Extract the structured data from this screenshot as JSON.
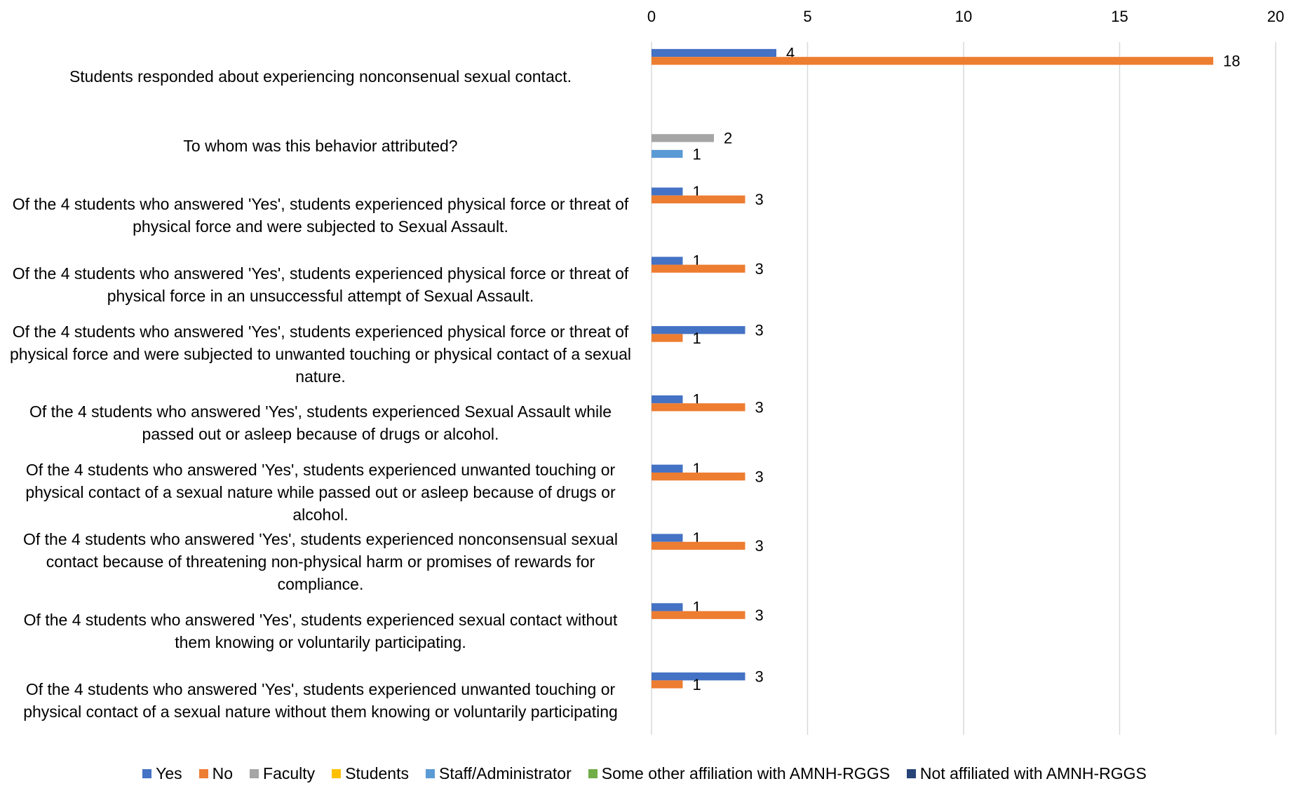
{
  "chart_data": {
    "type": "hbar",
    "categories": [
      "Students responded about experiencing nonconsenual sexual contact.",
      "To whom was this behavior attributed?",
      "Of the 4 students who answered 'Yes', students experienced physical force or threat of physical force and were subjected to Sexual Assault.",
      "Of the 4 students who answered 'Yes', students experienced physical force or threat of physical force in an unsuccessful attempt of Sexual Assault.",
      "Of the 4 students who answered 'Yes', students experienced physical force or threat of physical force and were subjected to unwanted touching or physical contact of a sexual nature.",
      "Of the 4 students who answered 'Yes', students experienced Sexual Assault while passed out or asleep because of drugs or alcohol.",
      "Of the 4 students who answered 'Yes', students experienced unwanted touching or physical contact of a sexual nature while passed out or asleep because of drugs or alcohol.",
      "Of the 4 students who answered 'Yes', students experienced nonconsensual sexual contact because of threatening non-physical harm or promises of rewards for compliance.",
      "Of the 4 students who answered 'Yes', students experienced sexual contact without them knowing or voluntarily participating.",
      "Of the 4 students who answered 'Yes', students experienced unwanted touching or physical contact of a sexual nature without them knowing or voluntarily participating"
    ],
    "series": [
      {
        "name": "Yes",
        "color": "#4472c4",
        "values": [
          4,
          null,
          1,
          1,
          3,
          1,
          1,
          1,
          1,
          3
        ]
      },
      {
        "name": "No",
        "color": "#ed7d31",
        "values": [
          18,
          null,
          3,
          3,
          1,
          3,
          3,
          3,
          3,
          1
        ]
      },
      {
        "name": "Faculty",
        "color": "#a5a5a5",
        "values": [
          null,
          2,
          null,
          null,
          null,
          null,
          null,
          null,
          null,
          null
        ]
      },
      {
        "name": "Students",
        "color": "#ffc000",
        "values": [
          null,
          null,
          null,
          null,
          null,
          null,
          null,
          null,
          null,
          null
        ]
      },
      {
        "name": "Staff/Administrator",
        "color": "#5b9bd5",
        "values": [
          null,
          1,
          null,
          null,
          null,
          null,
          null,
          null,
          null,
          null
        ]
      },
      {
        "name": "Some other affiliation with AMNH-RGGS",
        "color": "#70ad47",
        "values": [
          null,
          null,
          null,
          null,
          null,
          null,
          null,
          null,
          null,
          null
        ]
      },
      {
        "name": "Not affiliated with AMNH-RGGS",
        "color": "#264478",
        "values": [
          null,
          null,
          null,
          null,
          null,
          null,
          null,
          null,
          null,
          null
        ]
      }
    ],
    "xlim": [
      0,
      20
    ],
    "xticks": [
      0,
      5,
      10,
      15,
      20
    ],
    "grid": true,
    "legend": "bottom"
  }
}
